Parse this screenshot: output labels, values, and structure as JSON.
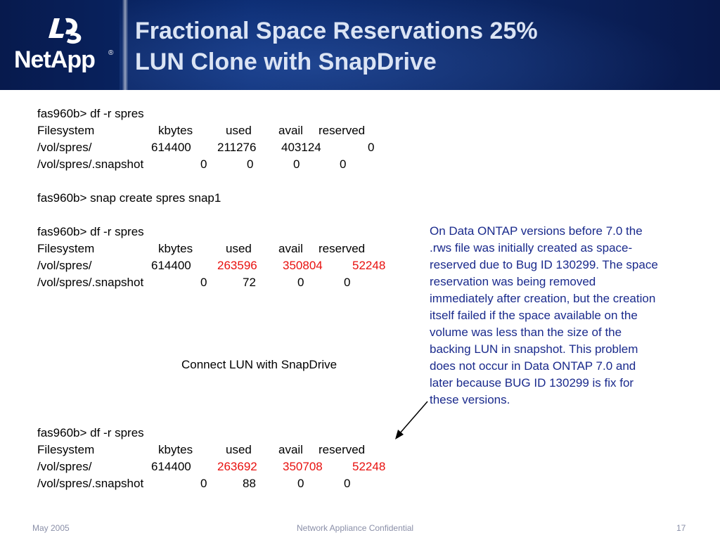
{
  "logo": {
    "text": "NetApp",
    "reg": "®"
  },
  "title": {
    "line1": "Fractional Space Reservations 25%",
    "line2": "LUN Clone with SnapDrive"
  },
  "block1": {
    "command": "fas960b> df -r spres",
    "header": [
      "Filesystem",
      "kbytes",
      "used",
      "avail",
      "reserved"
    ],
    "rows": [
      [
        "/vol/spres/",
        "614400",
        "211276",
        "403124",
        "0"
      ],
      [
        "/vol/spres/.snapshot",
        "0",
        "0",
        "0",
        "0"
      ]
    ]
  },
  "snap_command": "fas960b> snap create spres snap1",
  "block2": {
    "command": "fas960b> df -r spres",
    "header": [
      "Filesystem",
      "kbytes",
      "used",
      "avail",
      "reserved"
    ],
    "rows": [
      [
        "/vol/spres/",
        "614400",
        "263596",
        "350804",
        "52248"
      ],
      [
        "/vol/spres/.snapshot",
        "0",
        "72",
        "0",
        "0"
      ]
    ]
  },
  "connect_label": "Connect LUN with SnapDrive",
  "block3": {
    "command": "fas960b> df -r spres",
    "header": [
      "Filesystem",
      "kbytes",
      "used",
      "avail",
      "reserved"
    ],
    "rows": [
      [
        "/vol/spres/",
        "614400",
        "263692",
        "350708",
        "52248"
      ],
      [
        "/vol/spres/.snapshot",
        "0",
        "88",
        "0",
        "0"
      ]
    ]
  },
  "note": {
    "lines": [
      "On Data ONTAP versions before 7.0 the",
      ".rws file was initially created as space-",
      "reserved due to Bug ID 130299. The space",
      "reservation was being removed",
      "immediately after creation, but the creation",
      "itself failed if the space available on the",
      "volume was less than the size of the",
      "backing LUN in snapshot. This problem",
      "does not occur in Data ONTAP 7.0 and",
      "later because BUG ID 130299 is fix for",
      "these versions."
    ]
  },
  "footer": {
    "date": "May 2005",
    "confidential": "Network Appliance Confidential",
    "page": "17"
  },
  "colors": {
    "header_bg": "#0a2a70",
    "title_text": "#dbe4f4",
    "highlight_red": "#e8100e",
    "note_blue": "#1a2a8c",
    "footer_gray": "#8a8fa8"
  }
}
